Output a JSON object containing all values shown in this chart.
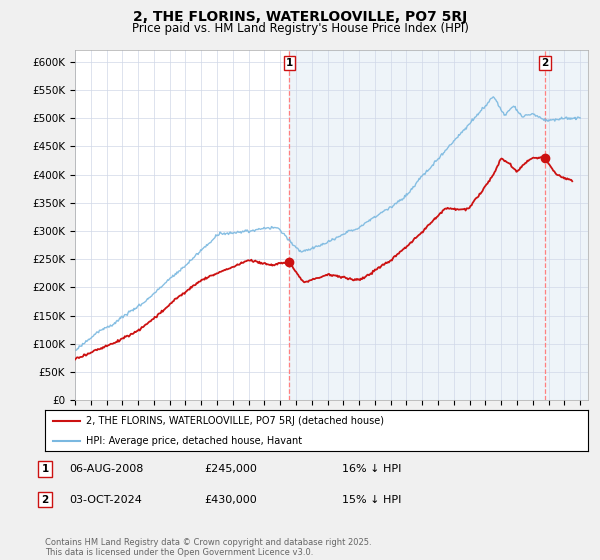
{
  "title": "2, THE FLORINS, WATERLOOVILLE, PO7 5RJ",
  "subtitle": "Price paid vs. HM Land Registry's House Price Index (HPI)",
  "ylabel_ticks": [
    "£0",
    "£50K",
    "£100K",
    "£150K",
    "£200K",
    "£250K",
    "£300K",
    "£350K",
    "£400K",
    "£450K",
    "£500K",
    "£550K",
    "£600K"
  ],
  "ytick_values": [
    0,
    50000,
    100000,
    150000,
    200000,
    250000,
    300000,
    350000,
    400000,
    450000,
    500000,
    550000,
    600000
  ],
  "xlim_start": 1995.0,
  "xlim_end": 2027.5,
  "ylim_min": 0,
  "ylim_max": 620000,
  "hpi_color": "#7ab8e0",
  "price_color": "#cc1111",
  "marker1_date": 2008.585,
  "marker1_price": 245000,
  "marker2_date": 2024.75,
  "marker2_price": 430000,
  "legend_line1": "2, THE FLORINS, WATERLOOVILLE, PO7 5RJ (detached house)",
  "legend_line2": "HPI: Average price, detached house, Havant",
  "annotation1_date": "06-AUG-2008",
  "annotation1_price": "£245,000",
  "annotation1_note": "16% ↓ HPI",
  "annotation2_date": "03-OCT-2024",
  "annotation2_price": "£430,000",
  "annotation2_note": "15% ↓ HPI",
  "footer": "Contains HM Land Registry data © Crown copyright and database right 2025.\nThis data is licensed under the Open Government Licence v3.0.",
  "background_color": "#f0f0f0",
  "plot_bg_color": "#ffffff",
  "shaded_bg_color": "#deeaf5"
}
